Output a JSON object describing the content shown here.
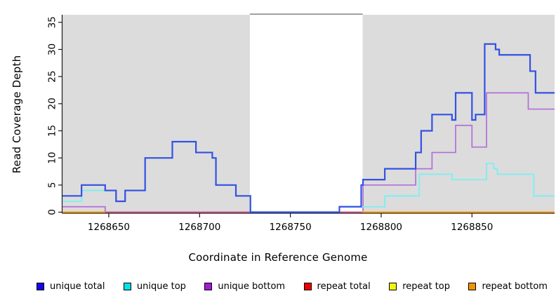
{
  "chart_data": {
    "type": "step-line",
    "title": "",
    "xlabel": "Coordinate in Reference Genome",
    "ylabel": "Read Coverage Depth",
    "xlim": [
      1268624.5,
      1268895.5
    ],
    "ylim": [
      0,
      36.4
    ],
    "x_ticks": [
      1268650,
      1268700,
      1268750,
      1268800,
      1268850
    ],
    "y_ticks": [
      0,
      5,
      10,
      15,
      20,
      25,
      30,
      35
    ],
    "grid": "off",
    "legend_position": "bottom",
    "plot_background": "#ffffff",
    "shaded_region_color": "#dcdcdc",
    "shaded_regions": [
      {
        "x0": 1268624.5,
        "x1": 1268727.7
      },
      {
        "x0": 1268789.8,
        "x1": 1268895.5
      }
    ],
    "gap_top_border": {
      "x0": 1268727.7,
      "x1": 1268789.8,
      "color": "#8c8c8c"
    },
    "axis_color": "#1a1a1a",
    "series": [
      {
        "name": "unique total",
        "line_color": "#3351e2",
        "legend_color": "#1704ea",
        "line_width": 2.2,
        "draw_index": 5,
        "segments": [
          {
            "points": [
              [
                1268624.5,
                3
              ],
              [
                1268635,
                5
              ],
              [
                1268648,
                4
              ],
              [
                1268654,
                2
              ],
              [
                1268659,
                4
              ],
              [
                1268670,
                10
              ],
              [
                1268685,
                13
              ],
              [
                1268698,
                11
              ],
              [
                1268707,
                10
              ],
              [
                1268709,
                5
              ],
              [
                1268720,
                3
              ],
              [
                1268728,
                0
              ],
              [
                1268777,
                1
              ],
              [
                1268789,
                5
              ],
              [
                1268790,
                6
              ],
              [
                1268802,
                8
              ],
              [
                1268819,
                11
              ],
              [
                1268822,
                15
              ],
              [
                1268828,
                18
              ],
              [
                1268839,
                17
              ],
              [
                1268841,
                22
              ],
              [
                1268850,
                17
              ],
              [
                1268852,
                18
              ],
              [
                1268857,
                31
              ],
              [
                1268863,
                30
              ],
              [
                1268865,
                29
              ],
              [
                1268882,
                26
              ],
              [
                1268885,
                22
              ]
            ],
            "end": 1268895.5
          }
        ]
      },
      {
        "name": "unique top",
        "line_color": "#7ceef2",
        "legend_color": "#00e3e8",
        "line_width": 1.8,
        "draw_index": 4,
        "segments": [
          {
            "points": [
              [
                1268624.5,
                2
              ],
              [
                1268635,
                4
              ],
              [
                1268654,
                2
              ],
              [
                1268659,
                4
              ],
              [
                1268670,
                10
              ],
              [
                1268685,
                13
              ],
              [
                1268698,
                11
              ],
              [
                1268707,
                10
              ],
              [
                1268709,
                5
              ],
              [
                1268720,
                3
              ],
              [
                1268728,
                0
              ],
              [
                1268777,
                1
              ],
              [
                1268802,
                3
              ],
              [
                1268821,
                7
              ],
              [
                1268839,
                6
              ],
              [
                1268858,
                9
              ],
              [
                1268862,
                8
              ],
              [
                1268864,
                7
              ],
              [
                1268884,
                3
              ]
            ],
            "end": 1268895.5
          }
        ]
      },
      {
        "name": "unique bottom",
        "line_color": "#b16fd9",
        "legend_color": "#a21cd6",
        "line_width": 1.7,
        "draw_index": 1,
        "segments": [
          {
            "points": [
              [
                1268624.5,
                1
              ],
              [
                1268648,
                0
              ],
              [
                1268790,
                5
              ],
              [
                1268819,
                8
              ],
              [
                1268828,
                11
              ],
              [
                1268841,
                16
              ],
              [
                1268850,
                12
              ],
              [
                1268858,
                22
              ],
              [
                1268881,
                19
              ]
            ],
            "end": 1268895.5
          }
        ]
      },
      {
        "name": "repeat total",
        "line_color": "#d9497a",
        "legend_color": "#ec0000",
        "line_width": 1.5,
        "draw_index": 2,
        "segments": [
          {
            "points": [
              [
                1268624.5,
                0
              ]
            ],
            "end": 1268895.5
          }
        ]
      },
      {
        "name": "repeat top",
        "line_color": "#f2ed4e",
        "legend_color": "#f3f314",
        "line_width": 1.5,
        "draw_index": 0,
        "segments": [
          {
            "points": [
              [
                1268624.5,
                0
              ]
            ],
            "end": 1268895.5
          }
        ]
      },
      {
        "name": "repeat bottom",
        "line_color": "#ff9d00",
        "legend_color": "#f29500",
        "line_width": 2,
        "draw_index": 3,
        "segments": [
          {
            "points": [
              [
                1268624.5,
                0
              ]
            ],
            "end": 1268648
          },
          {
            "points": [
              [
                1268789.5,
                0
              ]
            ],
            "end": 1268895.5
          }
        ]
      }
    ]
  }
}
